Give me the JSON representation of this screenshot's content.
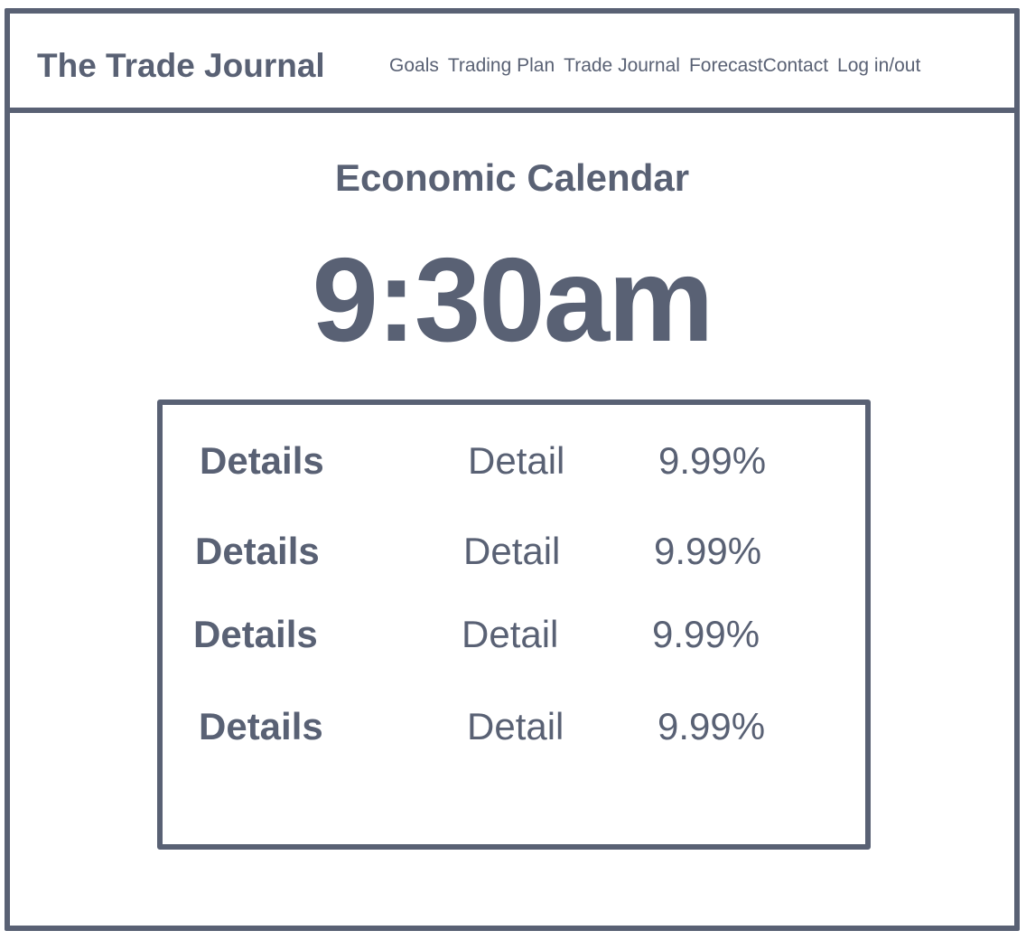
{
  "header": {
    "brand": "The Trade Journal",
    "nav": [
      "Goals",
      "Trading Plan",
      "Trade Journal",
      "Forecast",
      "Contact",
      "Log in/out"
    ]
  },
  "main": {
    "title": "Economic Calendar",
    "time": "9:30am",
    "events": [
      {
        "name": "Details",
        "detail": "Detail",
        "value": "9.99%"
      },
      {
        "name": "Details",
        "detail": "Detail",
        "value": "9.99%"
      },
      {
        "name": "Details",
        "detail": "Detail",
        "value": "9.99%"
      },
      {
        "name": "Details",
        "detail": "Detail",
        "value": "9.99%"
      }
    ]
  },
  "colors": {
    "ink": "#596174",
    "background": "#ffffff"
  }
}
